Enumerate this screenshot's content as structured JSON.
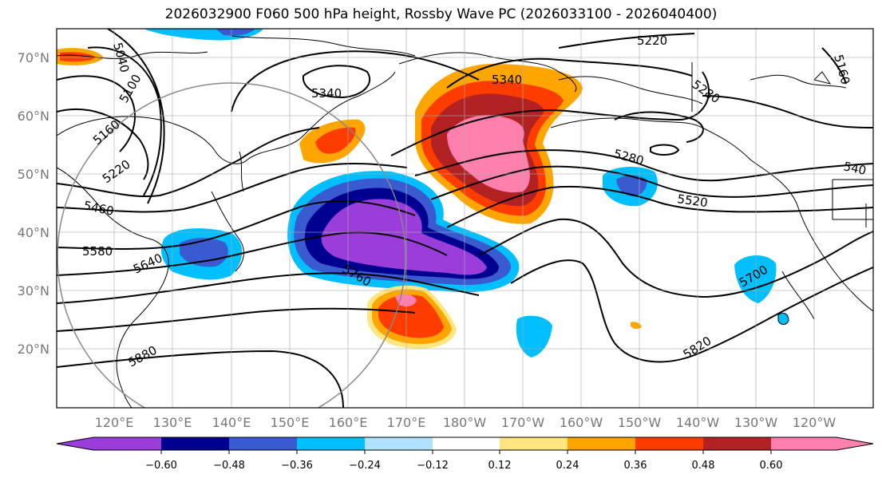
{
  "title": "2026032900 F060 500 hPa height, Rossby Wave PC (2026033100 - 2026040400)",
  "lat_labels": [
    "70°N",
    "60°N",
    "50°N",
    "40°N",
    "30°N",
    "20°N"
  ],
  "lon_labels": [
    "120°E",
    "130°E",
    "140°E",
    "150°E",
    "160°E",
    "170°E",
    "180°W",
    "170°W",
    "160°W",
    "150°W",
    "140°W",
    "130°W",
    "120°W"
  ],
  "contour_labels": [
    "5220",
    "5340",
    "5340",
    "5040",
    "5100",
    "5160",
    "5220",
    "5460",
    "5580",
    "5640",
    "5760",
    "5880",
    "5280",
    "5280",
    "5520",
    "540",
    "5700",
    "5820",
    "5160"
  ],
  "colorbar": {
    "tick_labels": [
      "−0.60",
      "−0.48",
      "−0.36",
      "−0.24",
      "−0.12",
      "0.12",
      "0.24",
      "0.36",
      "0.48",
      "0.60"
    ],
    "colors": [
      "#9a3ddb",
      "#000090",
      "#3a5ad0",
      "#00bfff",
      "#b0e2ff",
      "#ffffff",
      "#ffe680",
      "#ffa500",
      "#ff3c00",
      "#b22222",
      "#ff7fae"
    ]
  }
}
